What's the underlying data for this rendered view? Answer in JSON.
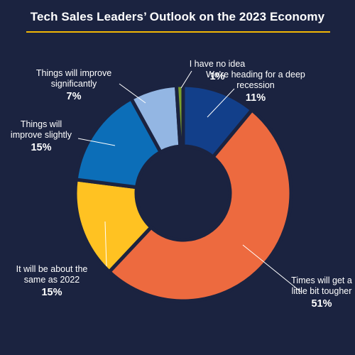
{
  "title": "Tech Sales Leaders’ Outlook on the 2023 Economy",
  "chart_data": {
    "type": "pie",
    "title": "Tech Sales Leaders’ Outlook on the 2023 Economy",
    "donut": true,
    "slices": [
      {
        "label": "We're heading for a deep recession",
        "value": 11,
        "display": "11%",
        "color": "#123f8a"
      },
      {
        "label": "Times will get a little bit tougher",
        "value": 51,
        "display": "51%",
        "color": "#ed6a3f"
      },
      {
        "label": "It will be about the same as 2022",
        "value": 15,
        "display": "15%",
        "color": "#ffc222"
      },
      {
        "label": "Things will improve slightly",
        "value": 15,
        "display": "15%",
        "color": "#0c6eb8"
      },
      {
        "label": "Things will improve significantly",
        "value": 7,
        "display": "7%",
        "color": "#93b6e3"
      },
      {
        "label": "I have no idea",
        "value": 1,
        "display": "1%",
        "color": "#7aa02a"
      }
    ]
  }
}
